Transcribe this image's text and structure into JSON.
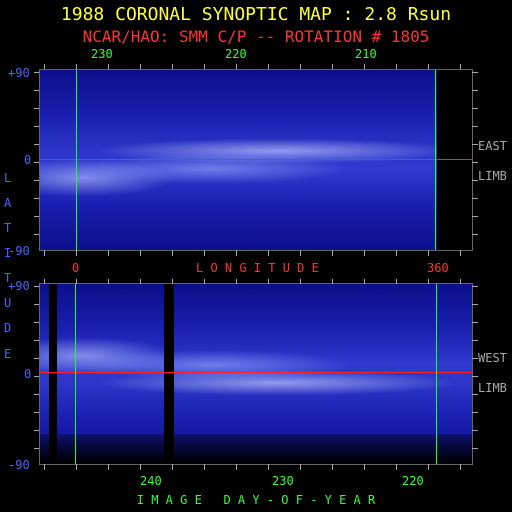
{
  "title": "1988 CORONAL SYNOPTIC MAP : 2.8 Rsun",
  "subtitle": "NCAR/HAO: SMM C/P -- ROTATION # 1805",
  "top_axis_labels": [
    "230",
    "220",
    "210"
  ],
  "longitude_axis": {
    "label": "L O N G I T U D E",
    "left": "0",
    "right": "360"
  },
  "latitude_axis": {
    "letters": [
      "L",
      "A",
      "T",
      "I",
      "T",
      "U",
      "D",
      "E"
    ]
  },
  "top_panel": {
    "y_top": "+90",
    "y_mid": "0",
    "y_bottom": "-90",
    "limb_label": "EAST",
    "limb_word": "LIMB"
  },
  "bottom_panel": {
    "y_top": "+90",
    "y_mid": "0",
    "y_bottom": "-90",
    "limb_label": "WEST",
    "limb_word": "LIMB"
  },
  "bottom_axis_labels": [
    "240",
    "230",
    "220"
  ],
  "bottom_axis_title": "I M A G E   D A Y - O F - Y E A R",
  "colors": {
    "title": "#ffff33",
    "subtitle": "#ff3333",
    "equator": "#ff2222",
    "boundary": "#22ff22",
    "axis_numbers": "#4466ff"
  }
}
